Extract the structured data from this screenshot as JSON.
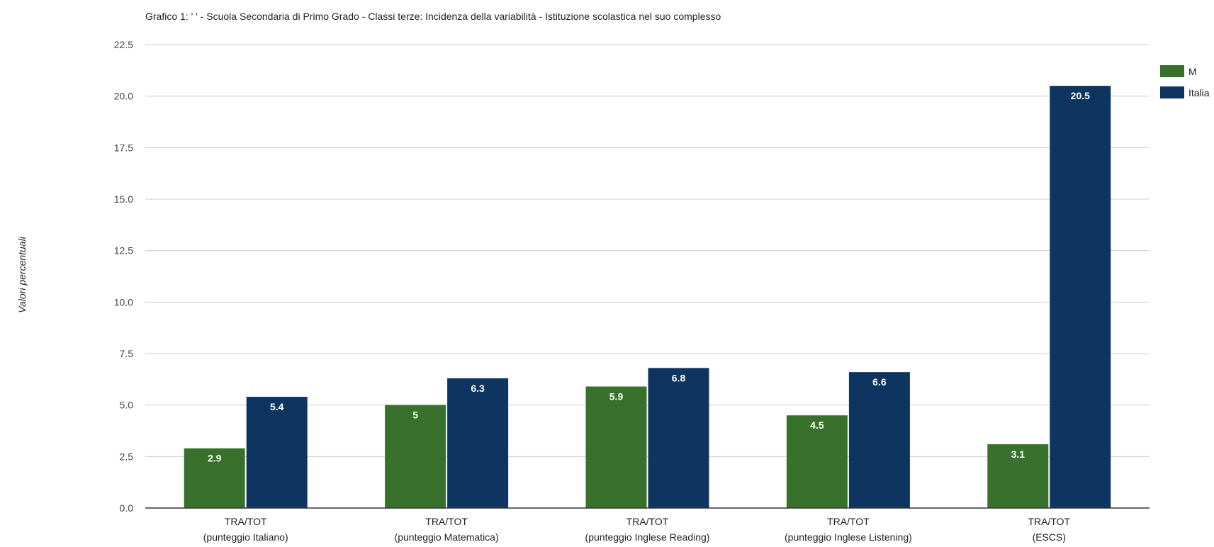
{
  "chart_data": {
    "type": "bar",
    "title": "Grafico 1: ' ' - Scuola Secondaria di Primo Grado - Classi terze: Incidenza della variabilità - Istituzione scolastica nel suo complesso",
    "xlabel": "",
    "ylabel": "Valori percentuali",
    "ylim": [
      0,
      22.5
    ],
    "yticks": [
      "0.0",
      "2.5",
      "5.0",
      "7.5",
      "10.0",
      "12.5",
      "15.0",
      "17.5",
      "20.0",
      "22.5"
    ],
    "ytick_values": [
      0,
      2.5,
      5,
      7.5,
      10,
      12.5,
      15,
      17.5,
      20,
      22.5
    ],
    "grid": true,
    "legend_position": "top-right",
    "categories": [
      [
        "TRA/TOT",
        "(punteggio Italiano)"
      ],
      [
        "TRA/TOT",
        "(punteggio Matematica)"
      ],
      [
        "TRA/TOT",
        "(punteggio Inglese Reading)"
      ],
      [
        "TRA/TOT",
        "(punteggio Inglese Listening)"
      ],
      [
        "TRA/TOT",
        "(ESCS)"
      ]
    ],
    "series": [
      {
        "name": "M",
        "color": "#38712c",
        "values": [
          2.9,
          5,
          5.9,
          4.5,
          3.1
        ],
        "labels": [
          "2.9",
          "5",
          "5.9",
          "4.5",
          "3.1"
        ]
      },
      {
        "name": "Italia",
        "color": "#0e3560",
        "values": [
          5.4,
          6.3,
          6.8,
          6.6,
          20.5
        ],
        "labels": [
          "5.4",
          "6.3",
          "6.8",
          "6.6",
          "20.5"
        ]
      }
    ]
  },
  "colors": {
    "grid": "#cccccc",
    "axis": "#333333",
    "series_1": "#38712c",
    "series_2": "#0e3560"
  }
}
